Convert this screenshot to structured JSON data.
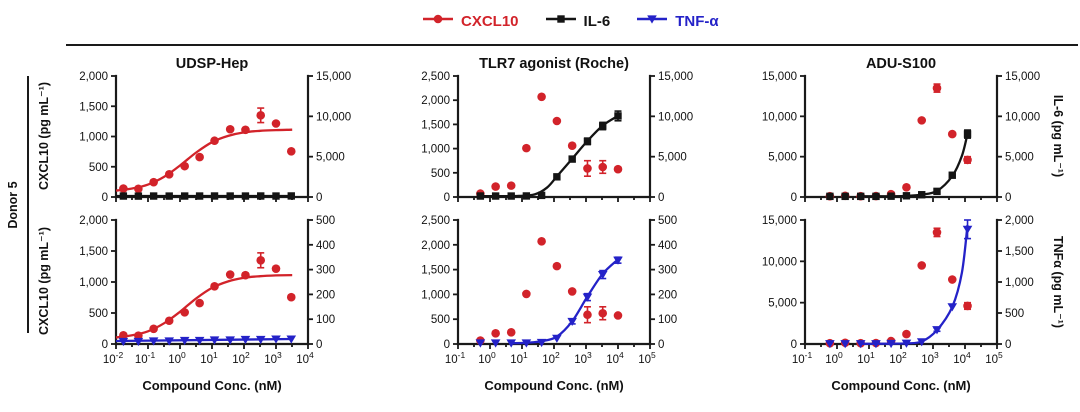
{
  "colors": {
    "cxcl10": "#d2232a",
    "il6": "#141414",
    "tnfa": "#2422c8",
    "axis": "#1a1a1a"
  },
  "row_label": "Donor 5",
  "legend": {
    "items": [
      {
        "label": "CXCL10",
        "color": "#d2232a",
        "marker": "circle"
      },
      {
        "label": "IL-6",
        "color": "#141414",
        "marker": "square"
      },
      {
        "label": "TNF-α",
        "color": "#2422c8",
        "marker": "tridown"
      }
    ]
  },
  "labels": {
    "left_y": "CXCL10 (pg mL⁻¹)",
    "right_y_top": "IL-6 (pg mL⁻¹)",
    "right_y_bottom": "TNFα (pg mL⁻¹)",
    "x_axis": "Compound Conc. (nM)"
  },
  "columns": [
    {
      "title": "UDSP-Hep"
    },
    {
      "title": "TLR7 agonist (Roche)"
    },
    {
      "title": "ADU-S100"
    }
  ],
  "chart_data": [
    {
      "id": "udsp-top",
      "type": "scatter",
      "title": "UDSP-Hep",
      "col": 0,
      "row": 0,
      "x_scale": "log10",
      "x_ticks_exp": [
        -2,
        -1,
        0,
        1,
        2,
        3,
        4
      ],
      "left_axis": {
        "label": "CXCL10 (pg mL⁻¹)",
        "max": 2000,
        "ticks": [
          0,
          500,
          1000,
          1500,
          2000
        ]
      },
      "right_axis": {
        "label": "IL-6 (pg mL⁻¹)",
        "max": 15000,
        "ticks": [
          0,
          5000,
          10000,
          15000
        ]
      },
      "series": [
        {
          "name": "CXCL10",
          "axis": "left",
          "marker": "circle",
          "color": "cxcl10",
          "x": [
            0.017,
            0.05,
            0.15,
            0.46,
            1.4,
            4.1,
            12,
            37,
            111,
            333,
            1000,
            3000
          ],
          "y": [
            140,
            135,
            245,
            375,
            510,
            660,
            930,
            1120,
            1110,
            1350,
            1215,
            755
          ],
          "err": [
            0,
            0,
            0,
            0,
            0,
            0,
            0,
            0,
            0,
            120,
            0,
            0
          ],
          "fit": [
            [
              0.01,
              105
            ],
            [
              0.032,
              140
            ],
            [
              0.1,
              205
            ],
            [
              0.32,
              335
            ],
            [
              1,
              520
            ],
            [
              3.2,
              735
            ],
            [
              10,
              905
            ],
            [
              32,
              1010
            ],
            [
              100,
              1068
            ],
            [
              320,
              1094
            ],
            [
              1000,
              1106
            ],
            [
              3200,
              1112
            ]
          ]
        },
        {
          "name": "IL-6",
          "axis": "right",
          "marker": "square",
          "color": "il6",
          "x": [
            0.017,
            0.05,
            0.15,
            0.46,
            1.4,
            4.1,
            12,
            37,
            111,
            333,
            1000,
            3000
          ],
          "y": [
            120,
            110,
            120,
            115,
            120,
            120,
            125,
            120,
            120,
            125,
            120,
            130
          ],
          "err": [
            0,
            0,
            0,
            0,
            0,
            0,
            0,
            0,
            0,
            0,
            0,
            0
          ],
          "fit": [
            [
              0.01,
              120
            ],
            [
              3200,
              125
            ]
          ]
        }
      ]
    },
    {
      "id": "udsp-bottom",
      "type": "scatter",
      "title": "UDSP-Hep",
      "col": 0,
      "row": 1,
      "x_scale": "log10",
      "x_ticks_exp": [
        -2,
        -1,
        0,
        1,
        2,
        3,
        4
      ],
      "left_axis": {
        "label": "CXCL10 (pg mL⁻¹)",
        "max": 2000,
        "ticks": [
          0,
          500,
          1000,
          1500,
          2000
        ]
      },
      "right_axis": {
        "label": "TNFα (pg mL⁻¹)",
        "max": 500,
        "ticks": [
          0,
          100,
          200,
          300,
          400,
          500
        ]
      },
      "series": [
        {
          "name": "CXCL10",
          "axis": "left",
          "marker": "circle",
          "color": "cxcl10",
          "x": [
            0.017,
            0.05,
            0.15,
            0.46,
            1.4,
            4.1,
            12,
            37,
            111,
            333,
            1000,
            3000
          ],
          "y": [
            140,
            135,
            245,
            375,
            510,
            660,
            930,
            1120,
            1110,
            1350,
            1215,
            755
          ],
          "err": [
            0,
            0,
            0,
            0,
            0,
            0,
            0,
            0,
            0,
            120,
            0,
            0
          ],
          "fit": [
            [
              0.01,
              105
            ],
            [
              0.032,
              140
            ],
            [
              0.1,
              205
            ],
            [
              0.32,
              335
            ],
            [
              1,
              520
            ],
            [
              3.2,
              735
            ],
            [
              10,
              905
            ],
            [
              32,
              1010
            ],
            [
              100,
              1068
            ],
            [
              320,
              1094
            ],
            [
              1000,
              1106
            ],
            [
              3200,
              1112
            ]
          ]
        },
        {
          "name": "TNF-α",
          "axis": "right",
          "marker": "tridown",
          "color": "tnfa",
          "x": [
            0.017,
            0.05,
            0.15,
            0.46,
            1.4,
            4.1,
            12,
            37,
            111,
            333,
            1000,
            3000
          ],
          "y": [
            10,
            10,
            12,
            12,
            14,
            14,
            16,
            16,
            18,
            18,
            20,
            20
          ],
          "err": [
            0,
            0,
            0,
            0,
            0,
            0,
            0,
            0,
            0,
            0,
            0,
            0
          ],
          "fit": [
            [
              0.01,
              12
            ],
            [
              3200,
              20
            ]
          ]
        }
      ]
    },
    {
      "id": "tlr7-top",
      "type": "scatter",
      "title": "TLR7 agonist (Roche)",
      "col": 1,
      "row": 0,
      "x_scale": "log10",
      "x_ticks_exp": [
        -1,
        0,
        1,
        2,
        3,
        4,
        5
      ],
      "left_axis": {
        "label": "CXCL10 (pg mL⁻¹)",
        "max": 2500,
        "ticks": [
          0,
          500,
          1000,
          1500,
          2000,
          2500
        ]
      },
      "right_axis": {
        "label": "IL-6 (pg mL⁻¹)",
        "max": 15000,
        "ticks": [
          0,
          5000,
          10000,
          15000
        ]
      },
      "series": [
        {
          "name": "CXCL10",
          "axis": "left",
          "marker": "circle",
          "color": "cxcl10",
          "x": [
            0.5,
            1.5,
            4.6,
            13.7,
            41,
            123,
            370,
            1111,
            3333,
            10000
          ],
          "y": [
            70,
            215,
            235,
            1010,
            2070,
            1570,
            1060,
            590,
            620,
            575
          ],
          "err": [
            0,
            0,
            0,
            0,
            0,
            0,
            0,
            160,
            130,
            0
          ],
          "fit": null
        },
        {
          "name": "IL-6",
          "axis": "right",
          "marker": "square",
          "color": "il6",
          "x": [
            0.5,
            1.5,
            4.6,
            13.7,
            41,
            123,
            370,
            1111,
            3333,
            10000
          ],
          "y": [
            120,
            120,
            120,
            130,
            200,
            2500,
            4700,
            6900,
            8800,
            10050
          ],
          "err": [
            0,
            0,
            0,
            0,
            0,
            0,
            300,
            400,
            450,
            600
          ],
          "fit": [
            [
              0.5,
              110
            ],
            [
              2,
              112
            ],
            [
              8,
              135
            ],
            [
              25,
              320
            ],
            [
              60,
              1150
            ],
            [
              123,
              2550
            ],
            [
              370,
              4750
            ],
            [
              1111,
              6950
            ],
            [
              3333,
              8850
            ],
            [
              10000,
              10050
            ]
          ]
        }
      ]
    },
    {
      "id": "tlr7-bottom",
      "type": "scatter",
      "title": "TLR7 agonist (Roche)",
      "col": 1,
      "row": 1,
      "x_scale": "log10",
      "x_ticks_exp": [
        -1,
        0,
        1,
        2,
        3,
        4,
        5
      ],
      "left_axis": {
        "label": "CXCL10 (pg mL⁻¹)",
        "max": 2500,
        "ticks": [
          0,
          500,
          1000,
          1500,
          2000,
          2500
        ]
      },
      "right_axis": {
        "label": "TNFα (pg mL⁻¹)",
        "max": 500,
        "ticks": [
          0,
          100,
          200,
          300,
          400,
          500
        ]
      },
      "series": [
        {
          "name": "CXCL10",
          "axis": "left",
          "marker": "circle",
          "color": "cxcl10",
          "x": [
            0.5,
            1.5,
            4.6,
            13.7,
            41,
            123,
            370,
            1111,
            3333,
            10000
          ],
          "y": [
            70,
            215,
            235,
            1010,
            2070,
            1570,
            1060,
            590,
            620,
            575
          ],
          "err": [
            0,
            0,
            0,
            0,
            0,
            0,
            0,
            160,
            130,
            0
          ],
          "fit": null
        },
        {
          "name": "TNF-α",
          "axis": "right",
          "marker": "tridown",
          "color": "tnfa",
          "x": [
            0.5,
            1.5,
            4.6,
            13.7,
            41,
            123,
            370,
            1111,
            3333,
            10000
          ],
          "y": [
            4,
            4,
            4,
            4,
            6,
            23,
            91,
            189,
            280,
            338
          ],
          "err": [
            0,
            0,
            0,
            0,
            0,
            0,
            10,
            14,
            16,
            12
          ],
          "fit": [
            [
              4.6,
              3
            ],
            [
              13.7,
              5
            ],
            [
              41,
              11
            ],
            [
              123,
              30
            ],
            [
              370,
              92
            ],
            [
              1111,
              192
            ],
            [
              3333,
              283
            ],
            [
              10000,
              341
            ]
          ]
        }
      ]
    },
    {
      "id": "adu-top",
      "type": "scatter",
      "title": "ADU-S100",
      "col": 2,
      "row": 0,
      "x_scale": "log10",
      "x_ticks_exp": [
        -1,
        0,
        1,
        2,
        3,
        4,
        5
      ],
      "left_axis": {
        "label": "CXCL10 (pg mL⁻¹)",
        "max": 15000,
        "ticks": [
          0,
          5000,
          10000,
          15000
        ]
      },
      "right_axis": {
        "label": "IL-6 (pg mL⁻¹)",
        "max": 15000,
        "ticks": [
          0,
          5000,
          10000,
          15000
        ]
      },
      "series": [
        {
          "name": "CXCL10",
          "axis": "left",
          "marker": "circle",
          "color": "cxcl10",
          "x": [
            0.6,
            1.8,
            5.5,
            16.5,
            49,
            148,
            444,
            1333,
            4000,
            12000
          ],
          "y": [
            100,
            150,
            100,
            120,
            350,
            1200,
            9500,
            13500,
            7800,
            4600
          ],
          "err": [
            0,
            0,
            0,
            0,
            0,
            0,
            0,
            500,
            0,
            400
          ],
          "fit": null
        },
        {
          "name": "IL-6",
          "axis": "right",
          "marker": "square",
          "color": "il6",
          "x": [
            0.6,
            1.8,
            5.5,
            16.5,
            49,
            148,
            444,
            1333,
            4000,
            12000
          ],
          "y": [
            80,
            80,
            80,
            80,
            100,
            150,
            280,
            700,
            2700,
            7800
          ],
          "err": [
            0,
            0,
            0,
            0,
            0,
            0,
            0,
            0,
            0,
            500
          ],
          "fit": [
            [
              5,
              85
            ],
            [
              49,
              90
            ],
            [
              148,
              140
            ],
            [
              444,
              300
            ],
            [
              1333,
              750
            ],
            [
              4000,
              2600
            ],
            [
              8000,
              5100
            ],
            [
              12000,
              7850
            ]
          ]
        }
      ]
    },
    {
      "id": "adu-bottom",
      "type": "scatter",
      "title": "ADU-S100",
      "col": 2,
      "row": 1,
      "x_scale": "log10",
      "x_ticks_exp": [
        -1,
        0,
        1,
        2,
        3,
        4,
        5
      ],
      "left_axis": {
        "label": "CXCL10 (pg mL⁻¹)",
        "max": 15000,
        "ticks": [
          0,
          5000,
          10000,
          15000
        ]
      },
      "right_axis": {
        "label": "TNFα (pg mL⁻¹)",
        "max": 2000,
        "ticks": [
          0,
          500,
          1000,
          1500,
          2000
        ]
      },
      "series": [
        {
          "name": "CXCL10",
          "axis": "left",
          "marker": "circle",
          "color": "cxcl10",
          "x": [
            0.6,
            1.8,
            5.5,
            16.5,
            49,
            148,
            444,
            1333,
            4000,
            12000
          ],
          "y": [
            100,
            150,
            100,
            120,
            350,
            1200,
            9500,
            13500,
            7800,
            4600
          ],
          "err": [
            0,
            0,
            0,
            0,
            0,
            0,
            0,
            500,
            0,
            400
          ],
          "fit": null
        },
        {
          "name": "TNF-α",
          "axis": "right",
          "marker": "tridown",
          "color": "tnfa",
          "x": [
            0.6,
            1.8,
            5.5,
            16.5,
            49,
            148,
            444,
            1333,
            4000,
            12000
          ],
          "y": [
            5,
            5,
            5,
            5,
            8,
            12,
            35,
            230,
            600,
            1850
          ],
          "err": [
            0,
            0,
            0,
            0,
            0,
            0,
            0,
            25,
            0,
            150
          ],
          "fit": [
            [
              5,
              4
            ],
            [
              49,
              5
            ],
            [
              148,
              10
            ],
            [
              444,
              40
            ],
            [
              1333,
              225
            ],
            [
              4000,
              600
            ],
            [
              8000,
              1150
            ],
            [
              12000,
              1920
            ]
          ]
        }
      ]
    }
  ]
}
